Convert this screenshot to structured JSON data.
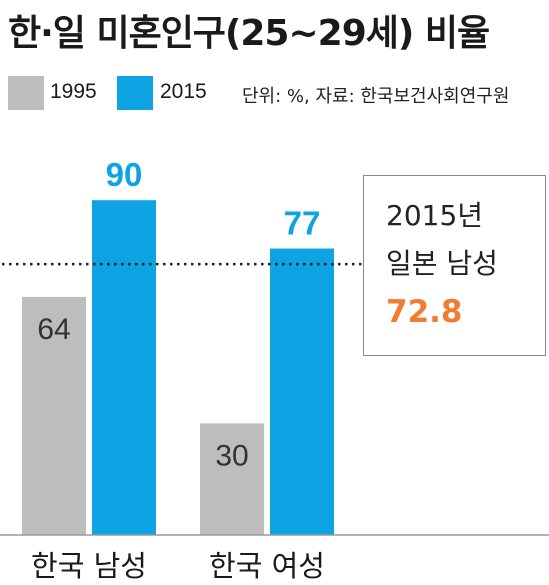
{
  "title": "한·일 미혼인구(25~29세) 비율",
  "legend_note": "단위: %, 자료: 한국보건사회연구원",
  "colors": {
    "series_1995": "#bdbdbd",
    "series_2015": "#0ea3e3",
    "accent": "#f07d31"
  },
  "chart_data": {
    "type": "bar",
    "title": "한·일 미혼인구(25~29세) 비율",
    "categories": [
      "한국 남성",
      "한국 여성"
    ],
    "series": [
      {
        "name": "1995",
        "values": [
          64,
          30
        ]
      },
      {
        "name": "2015",
        "values": [
          90,
          77
        ]
      }
    ],
    "xlabel": "",
    "ylabel": "",
    "ylim": [
      0,
      100
    ],
    "grid": false,
    "legend_position": "top-left",
    "reference_line": {
      "value": 72.8,
      "year": "2015년",
      "label": "일본 남성",
      "value_label": "72.8"
    }
  }
}
